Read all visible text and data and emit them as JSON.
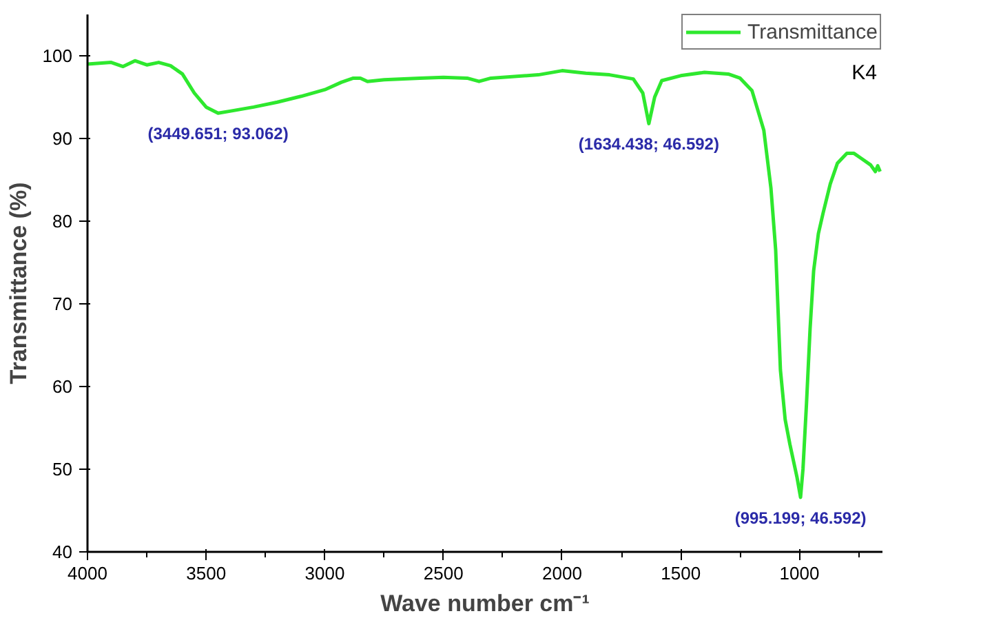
{
  "chart_data": {
    "type": "line",
    "xlabel": "Wave number cm⁻¹",
    "ylabel": "Transmittance (%)",
    "x": [
      4000,
      3900,
      3850,
      3800,
      3750,
      3700,
      3650,
      3600,
      3550,
      3500,
      3449.651,
      3400,
      3300,
      3200,
      3100,
      3000,
      2930,
      2880,
      2850,
      2820,
      2750,
      2600,
      2500,
      2400,
      2350,
      2300,
      2100,
      2000,
      1900,
      1800,
      1700,
      1660,
      1634.438,
      1610,
      1580,
      1500,
      1400,
      1300,
      1250,
      1200,
      1150,
      1120,
      1100,
      1080,
      1060,
      1040,
      1010,
      995.199,
      985,
      970,
      955,
      940,
      920,
      900,
      870,
      840,
      800,
      770,
      740,
      700,
      680,
      670,
      660
    ],
    "series": [
      {
        "name": "Transmittance",
        "color": "#2ee82e",
        "values": [
          99.0,
          99.2,
          98.7,
          99.4,
          98.9,
          99.2,
          98.8,
          97.8,
          95.5,
          93.8,
          93.062,
          93.3,
          93.8,
          94.4,
          95.1,
          95.9,
          96.8,
          97.3,
          97.3,
          96.9,
          97.1,
          97.3,
          97.4,
          97.3,
          96.9,
          97.3,
          97.7,
          98.2,
          97.9,
          97.7,
          97.2,
          95.5,
          91.8,
          95.0,
          97.0,
          97.6,
          98.0,
          97.8,
          97.3,
          95.8,
          91,
          84,
          76.5,
          62,
          56,
          53,
          49,
          46.592,
          50,
          58,
          67,
          74,
          78.5,
          81,
          84.5,
          87,
          88.2,
          88.2,
          87.6,
          86.8,
          86,
          86.7,
          86.0
        ]
      }
    ],
    "xlim": [
      4000,
      650
    ],
    "ylim": [
      40,
      105
    ],
    "xticks": [
      4000,
      3500,
      3000,
      2500,
      2000,
      1500,
      1000
    ],
    "yticks": [
      40,
      50,
      60,
      70,
      80,
      90,
      100
    ],
    "annotations": [
      {
        "text": "(3449.651; 93.062)",
        "x": 3449.651,
        "y": 93.062
      },
      {
        "text": "(1634.438; 46.592)",
        "x": 1634.438,
        "y": 91.8
      },
      {
        "text": "(995.199; 46.592)",
        "x": 995.199,
        "y": 46.592
      },
      "K4"
    ],
    "grid": false,
    "legend": "top right",
    "marker": "none",
    "line_style": "solid"
  }
}
